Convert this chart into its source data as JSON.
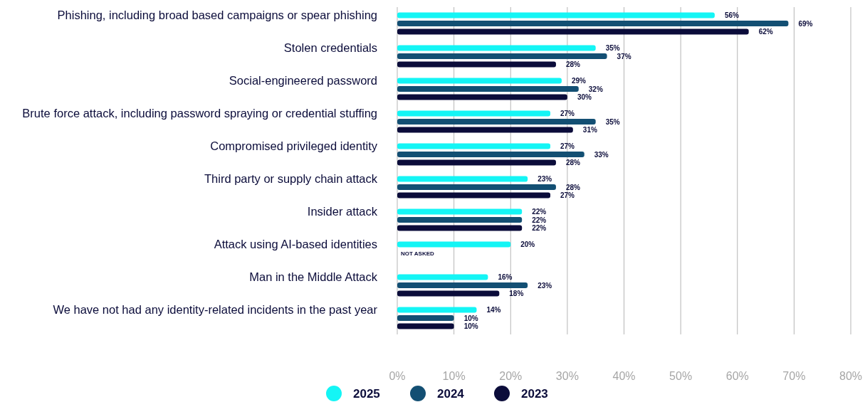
{
  "chart_data": {
    "type": "bar",
    "orientation": "horizontal",
    "categories": [
      "Phishing, including broad based campaigns or spear phishing",
      "Stolen credentials",
      "Social-engineered password",
      "Brute force attack, including password spraying or credential stuffing",
      "Compromised privileged identity",
      "Third party or supply chain attack",
      "Insider attack",
      "Attack using AI-based identities",
      "Man in the Middle Attack",
      "We have not had any identity-related incidents in the past year"
    ],
    "series": [
      {
        "name": "2025",
        "color": "#14f5f5",
        "values": [
          56,
          35,
          29,
          27,
          27,
          23,
          22,
          20,
          16,
          14
        ],
        "value_labels": [
          "56%",
          "35%",
          "29%",
          "27%",
          "27%",
          "23%",
          "22%",
          "20%",
          "16%",
          "14%"
        ]
      },
      {
        "name": "2024",
        "color": "#134f73",
        "values": [
          69,
          37,
          32,
          35,
          33,
          28,
          22,
          null,
          23,
          10
        ],
        "value_labels": [
          "69%",
          "37%",
          "32%",
          "35%",
          "33%",
          "28%",
          "22%",
          "NOT ASKED",
          "23%",
          "10%"
        ]
      },
      {
        "name": "2023",
        "color": "#0b0c3a",
        "values": [
          62,
          28,
          30,
          31,
          28,
          27,
          22,
          null,
          18,
          10
        ],
        "value_labels": [
          "62%",
          "28%",
          "30%",
          "31%",
          "28%",
          "27%",
          "22%",
          null,
          "18%",
          "10%"
        ]
      }
    ],
    "xlim": [
      0,
      80
    ],
    "xticks": [
      {
        "value": 0,
        "label": "0%"
      },
      {
        "value": 10,
        "label": "10%"
      },
      {
        "value": 20,
        "label": "20%"
      },
      {
        "value": 30,
        "label": "30%"
      },
      {
        "value": 40,
        "label": "40%"
      },
      {
        "value": 50,
        "label": "50%"
      },
      {
        "value": 60,
        "label": "60%"
      },
      {
        "value": 70,
        "label": "70%"
      },
      {
        "value": 80,
        "label": "80%"
      }
    ],
    "grid": "x",
    "legend": "bottom"
  }
}
